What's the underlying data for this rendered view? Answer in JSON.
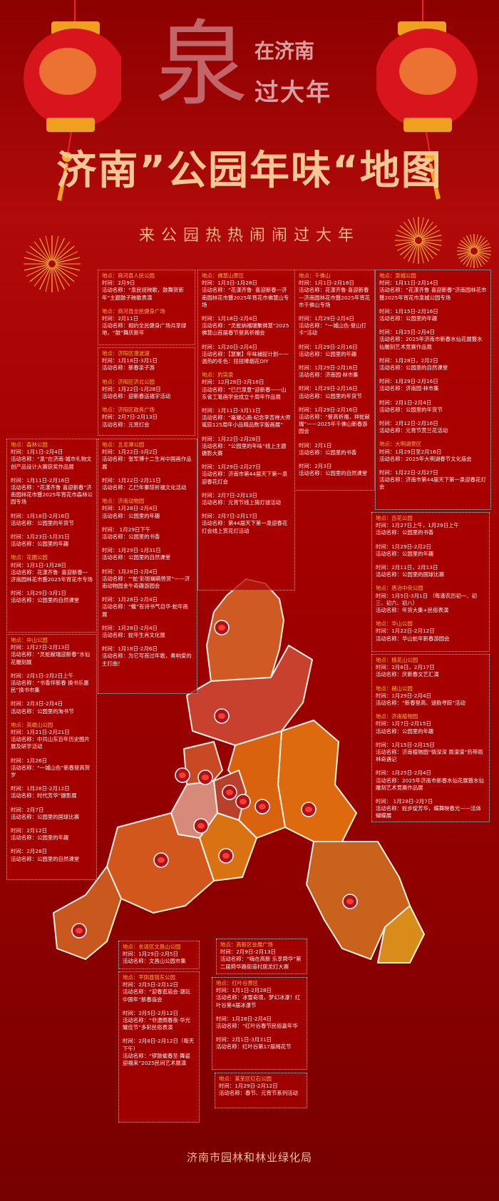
{
  "header": {
    "logo_text": "泉在济南过大年",
    "logo_line1": "在济南",
    "logo_line2": "过大年",
    "logo_big_char": "泉",
    "title": "济南”公园年味“地图",
    "subtitle": "来公园热热闹闹过大年"
  },
  "labels": {
    "location": "地点：",
    "time": "时间：",
    "activity": "活动名称："
  },
  "colors": {
    "location_text": "#f7b538",
    "title": "#f6c694",
    "background": "#a30000"
  },
  "boxes": [
    {
      "id": "shanghe",
      "groups": [
        {
          "location": "商河县人民公园",
          "events": [
            {
              "time": "2月9日",
              "name": "“泉民扭秧歌，鼓舞贺新年”主题鼓子秧歌表演"
            }
          ]
        },
        {
          "location": "商河县全民健身广场",
          "events": [
            {
              "time": "2月11日",
              "name": "相约全民健身广场共享绿地，“鼓”舞庆新年"
            }
          ]
        }
      ]
    },
    {
      "id": "jiyang",
      "groups": [
        {
          "location": "济阳区澄波湖",
          "events": [
            {
              "time": "1月18日-3月1日",
              "name": "新春亲子游"
            }
          ]
        },
        {
          "location": "济阳区济北公园",
          "events": [
            {
              "time": "1月22日-1月28日",
              "name": "迎新春送福字活动"
            }
          ]
        },
        {
          "location": "济阳区政务广场",
          "events": [
            {
              "time": "2月7日-2月13日",
              "name": "元宵灯会"
            }
          ]
        }
      ]
    },
    {
      "id": "wulongtan",
      "groups": [
        {
          "location": "五龙潭公园",
          "events": [
            {
              "time": "1月22日-3月2日",
              "name": "张军博十二生肖中国画作品展"
            },
            {
              "time": "1月22日-2月11日",
              "name": "乙巳年秦琼祈福文化活动"
            }
          ]
        },
        {
          "location": "济南动物园",
          "events": [
            {
              "time": "1月28日-2月4日",
              "name": "公园里的年趣"
            },
            {
              "time": " 1月29日下午",
              "name": "公园里的书香"
            },
            {
              "time": "1月29日-1月31日",
              "name": "公园里的自然课堂"
            },
            {
              "time": "1月28日-2月4日",
              "name": "“‘蛇’彩斑斓萌兽贺”——济南动物园金牛奇趣游园会"
            },
            {
              "time": "1月28日-2月4日",
              "name": "“蝮”有诗书气自华·蛇年画展"
            },
            {
              "time": "1月28日-2月4日",
              "name": "蛇年生肖文化展"
            },
            {
              "time": "1月18日-2月6日",
              "name": "为它写首过年歌，奏响爱的主打曲！"
            }
          ]
        }
      ]
    },
    {
      "id": "foshanshan",
      "groups": [
        {
          "location": "佛慧山景区",
          "events": [
            {
              "time": "1月3日-1月28日",
              "name": "“花漾齐鲁· 喜迎新春—济南园林花市暨2025年宵花市佛慧山专场"
            },
            {
              "time": "1月18日-2月4日",
              "name": "“灵蛇纳福瑞聚佛慧”2025佛慧山首届春节登高祈福会"
            },
            {
              "time": "1月20日-2月4日",
              "name": "【慧聚】年味捕捉计划——温热的冬色：扭扭棒烟花DIY"
            }
          ]
        },
        {
          "location": "趵突泉",
          "events": [
            {
              "time": "12月28日-2月16日",
              "name": "“巳巳泉意”迎新春——山东省工笔画学会成立十周年作品展"
            },
            {
              "time": "1月11日-3月11日",
              "name": "“毫端心画·纪念李苦禅大师诞辰125周年小品精品数字版画展”"
            },
            {
              "time": "1月22日-2月28日",
              "name": "“公园里的年味”线上主题摄影大赛"
            },
            {
              "time": "1月29日-2月27日",
              "name": "济南市第44届天下第一泉迎春花灯会"
            },
            {
              "time": "2月7日-2月13日",
              "name": "元宵节线上猜灯谜活动"
            },
            {
              "time": "2月7日-2月17日",
              "name": "第44届天下第一泉迎春花灯会线上赏花灯活动"
            }
          ]
        }
      ]
    },
    {
      "id": "qianfoshan",
      "groups": [
        {
          "location": "千佛山",
          "events": [
            {
              "time": "1月1日-2月16日",
              "name": "花漾齐鲁·喜迎新春—济南园林花市暨2025年宵花市千佛山专场"
            },
            {
              "time": "1月29日-2月4日",
              "name": "“一城山色·登山打卡”活动"
            },
            {
              "time": "1月29日-2月16日",
              "name": "公园里的年趣"
            },
            {
              "time": "1月29日-2月16日",
              "name": "济南园·林市集"
            },
            {
              "time": "1月29日-2月16日",
              "name": "公园里的年货节"
            },
            {
              "time": "1月29日-2月16日",
              "name": "“登高祈福，祥蛇献瑞”——2025年千佛山新春游园会"
            },
            {
              "time": "2月1日",
              "name": "公园里的书香"
            },
            {
              "time": "2月3日",
              "name": "公园里的自然课堂"
            }
          ]
        }
      ]
    },
    {
      "id": "quancheng",
      "groups": [
        {
          "location": "泉城公园",
          "events": [
            {
              "time": "1月11日-2月14日",
              "name": "“花漾齐鲁 喜迎新春”济南园林花市暨2025年宵花市泉城公园专场"
            },
            {
              "time": "1月15日-2月16日",
              "name": "公园里的年趣"
            },
            {
              "time": "1月25日-2月4日",
              "name": "2025年济南市新春水仙花展暨水仙雕刻艺术竞赛作品展"
            },
            {
              "time": "1月28日，2月2日",
              "name": "公园里的自然课堂"
            },
            {
              "time": "1月29日-2月16日",
              "name": "济南园·林市集"
            },
            {
              "time": "2月1日-2月4日",
              "name": "公园里的年货节"
            },
            {
              "time": "2月12日-2月16日",
              "name": "元宵节赏兰花活动"
            }
          ]
        },
        {
          "location": "大明湖景区",
          "events": [
            {
              "time": "1月29日至2月16日",
              "name": "2025年大明湖春节文化庙会"
            },
            {
              "time": "1月22日-2月27日",
              "name": "济南市第44届天下第一泉迎春花灯会"
            }
          ]
        }
      ]
    },
    {
      "id": "baihua",
      "groups": [
        {
          "location": "百花公园",
          "events": [
            {
              "time": "1月27日上午，1月29日上午",
              "name": "公园里的书香"
            },
            {
              "time": "1月29日-2月2日",
              "name": "公园里的年趣"
            },
            {
              "time": "2月11日，2月13日",
              "name": "公园里的国球比赛"
            }
          ]
        },
        {
          "location": "唐冶中央公园",
          "events": [
            {
              "time": "1月5日-3月1日 （每逢农历初一、初三、初六、初八）",
              "name": "年货大集+民俗表演"
            }
          ]
        },
        {
          "location": "华山公园",
          "events": [
            {
              "time": "1月22日-2月12日",
              "name": "华山蛇年新春游园会"
            }
          ]
        }
      ]
    },
    {
      "id": "taohuashan",
      "groups": [
        {
          "location": "桃花山公园",
          "events": [
            {
              "time": "2月8日，2月17日",
              "name": "庆新春文艺汇演"
            }
          ]
        },
        {
          "location": "赭山公园",
          "events": [
            {
              "time": "1月29日-2月4日",
              "name": "“新春登高、谜韵寻踪”活动"
            }
          ]
        },
        {
          "location": "济南植物园",
          "events": [
            {
              "time": "1月7日-2月15日",
              "name": "公园里的年趣"
            },
            {
              "time": "1月15日-2月15日",
              "name": "济南植物园“情深深 雨濛濛”热带雨林奇遇记"
            },
            {
              "time": "1月25日-2月4日",
              "name": "2025年济南市新春水仙花展暨水仙雕刻艺术竞赛作品展"
            },
            {
              "time": " 1月28日-2月7日",
              "name": "蛇步绽芳华，蝶舞映春光——活体蝴蝶展"
            }
          ]
        }
      ]
    },
    {
      "id": "senlin",
      "groups": [
        {
          "location": "森林公园",
          "events": [
            {
              "time": "1月1日-2月4日",
              "name": "“泉”在济南·城市礼物文创产品设计大赛获奖作品展"
            },
            {
              "time": "1月11日-2月16日",
              "name": "“花漾齐鲁 喜迎新春”济南园林花市暨2025年宵花市森林公园专场"
            },
            {
              "time": "1月18日-2月16日",
              "name": "公园里的年货节"
            },
            {
              "time": "1月23日-1月31日",
              "name": "公园里的年趣"
            }
          ]
        },
        {
          "location": "花圃公园",
          "events": [
            {
              "time": "1月1日-1月28日",
              "name": "花漾齐鲁· 喜迎新春—济南园林花市暨2025年宵花市专场"
            },
            {
              "time": "1月29日-3月1日",
              "name": "公园里的自然课堂"
            }
          ]
        }
      ]
    },
    {
      "id": "zhongshan",
      "groups": [
        {
          "location": "中山公园",
          "events": [
            {
              "time": "1月27日-2月13日",
              "name": "“灵蛇献瑞迎新春”水仙花雕刻展"
            },
            {
              "time": "2月1日-2月2日上午",
              "name": "“书香伴新春 换书乐惠民”换书市集"
            },
            {
              "time": "2月3日-2月4日",
              "name": "公园里的淘书节"
            }
          ]
        },
        {
          "location": "英雄山公园",
          "events": [
            {
              "time": "1月21日-2月21日",
              "name": "中共山东百年历史图片展及研学活动"
            },
            {
              "time": "1月26日",
              "name": "“一城山色”新春登高贺岁"
            },
            {
              "time": "1月28日-2月12日",
              "name": "时代芳华”摄影展"
            },
            {
              "time": "2月7日",
              "name": "公园里的国球比赛"
            },
            {
              "time": "2月12日",
              "name": "公园里的年趣"
            },
            {
              "time": "2月28日",
              "name": "公园里的自然课堂"
            }
          ]
        }
      ]
    },
    {
      "id": "changqing",
      "groups": [
        {
          "location": "长清区文昌山公园",
          "events": [
            {
              "time": "1月29日-2月5日",
              "name": "文昌山公园市集"
            }
          ]
        }
      ]
    },
    {
      "id": "pingyin",
      "groups": [
        {
          "location": "平阴县锦东公园",
          "events": [
            {
              "time": "2月5日-2月12日",
              "name": "“迎春逛庙会·潮玩中国年”新春庙会"
            },
            {
              "time": "2月5日-2月12日",
              "name": "“非遗照春夜·华光耀佳节”多彩民俗表演"
            },
            {
              "time": "2月8日-2月12日（每天下午）",
              "name": "“锣鼓催春至·舞姿迎福来”2025民间艺术展演"
            }
          ]
        }
      ]
    },
    {
      "id": "gaoxin",
      "groups": [
        {
          "location": "高新区会展广场",
          "events": [
            {
              "time": "2月9日-2月13日",
              "name": "“嗨在高新 乐享舜华”第二届舜华路街道村居龙灯大赛"
            }
          ]
        }
      ]
    },
    {
      "id": "hongyegu",
      "groups": [
        {
          "location": "红叶谷景区",
          "events": [
            {
              "time": "1月1日-2月28日",
              "name": "冰雪奇境，梦幻冰瀑！红叶谷第4届冰瀑节"
            },
            {
              "time": "1月28日-2月4日",
              "name": "“红叶谷春节民俗嘉年华"
            },
            {
              "time": "2月1日-3月31日",
              "name": "红叶谷第17届梅花节"
            }
          ]
        }
      ]
    },
    {
      "id": "laiwu",
      "groups": [
        {
          "location": "莱芜区红石公园",
          "events": [
            {
              "time": "1月29日-2月12日",
              "name": "春节、元宵节系列活动"
            }
          ]
        }
      ]
    }
  ],
  "footer": {
    "organization": "济南市园林和林业绿化局"
  }
}
